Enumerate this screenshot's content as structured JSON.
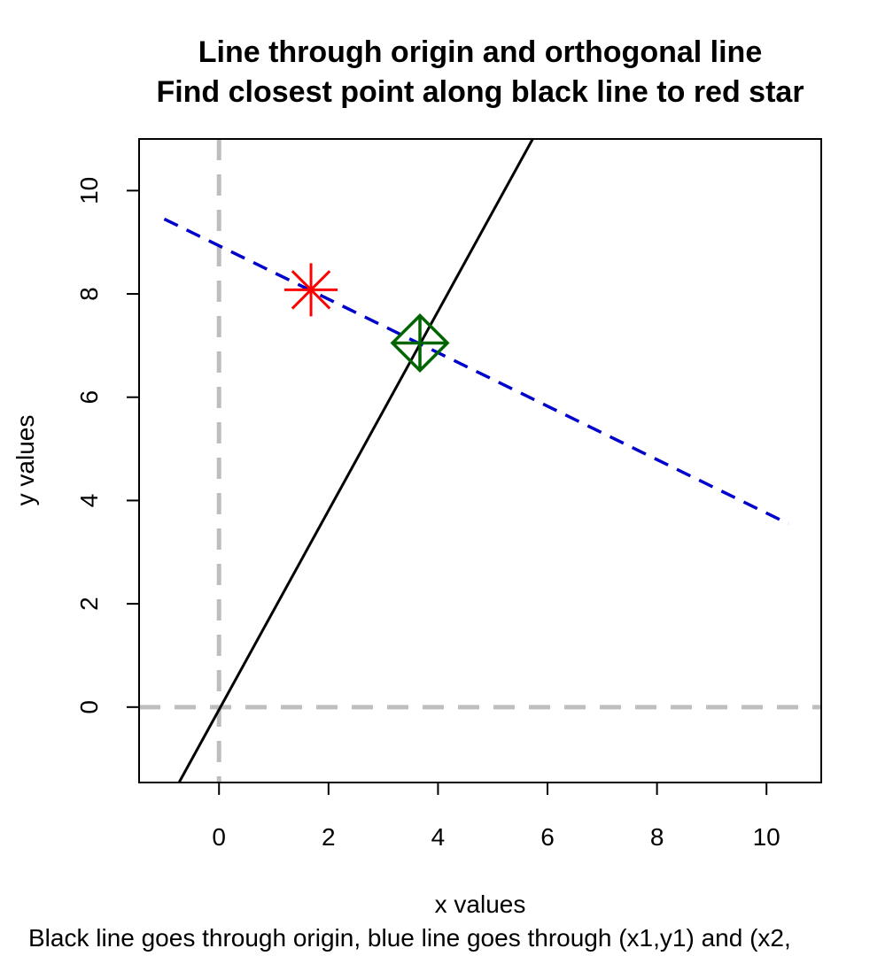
{
  "chart_data": {
    "type": "line",
    "title_lines": [
      "Line through origin and orthogonal line",
      "Find closest point along black line to red star"
    ],
    "xlabel": "x values",
    "ylabel": "y values",
    "subtitle": "Black line goes through origin, blue line goes through (x1,y1) and (x2,",
    "xlim": [
      -1.46,
      11.0
    ],
    "ylim": [
      -1.46,
      11.0
    ],
    "xticks": [
      0,
      2,
      4,
      6,
      8,
      10
    ],
    "yticks": [
      0,
      2,
      4,
      6,
      8,
      10
    ],
    "series": [
      {
        "color": "#000000",
        "linestyle": "solid",
        "x": [
          -0.73,
          5.73
        ],
        "y": [
          -1.46,
          11.0
        ]
      },
      {
        "color": "#0000cc",
        "linestyle": "dashed",
        "x": [
          -1.0,
          10.4
        ],
        "y": [
          9.45,
          3.55
        ]
      }
    ],
    "reference_lines": [
      {
        "orientation": "horizontal",
        "value": 0,
        "color": "#bebebe",
        "linestyle": "dashed"
      },
      {
        "orientation": "vertical",
        "value": 0,
        "color": "#bebebe",
        "linestyle": "dashed"
      }
    ],
    "points": [
      {
        "marker": "star",
        "color": "#ff0000",
        "x": 1.68,
        "y": 8.08
      },
      {
        "marker": "diamond-plus",
        "color": "#006400",
        "x": 3.67,
        "y": 7.05
      }
    ]
  }
}
